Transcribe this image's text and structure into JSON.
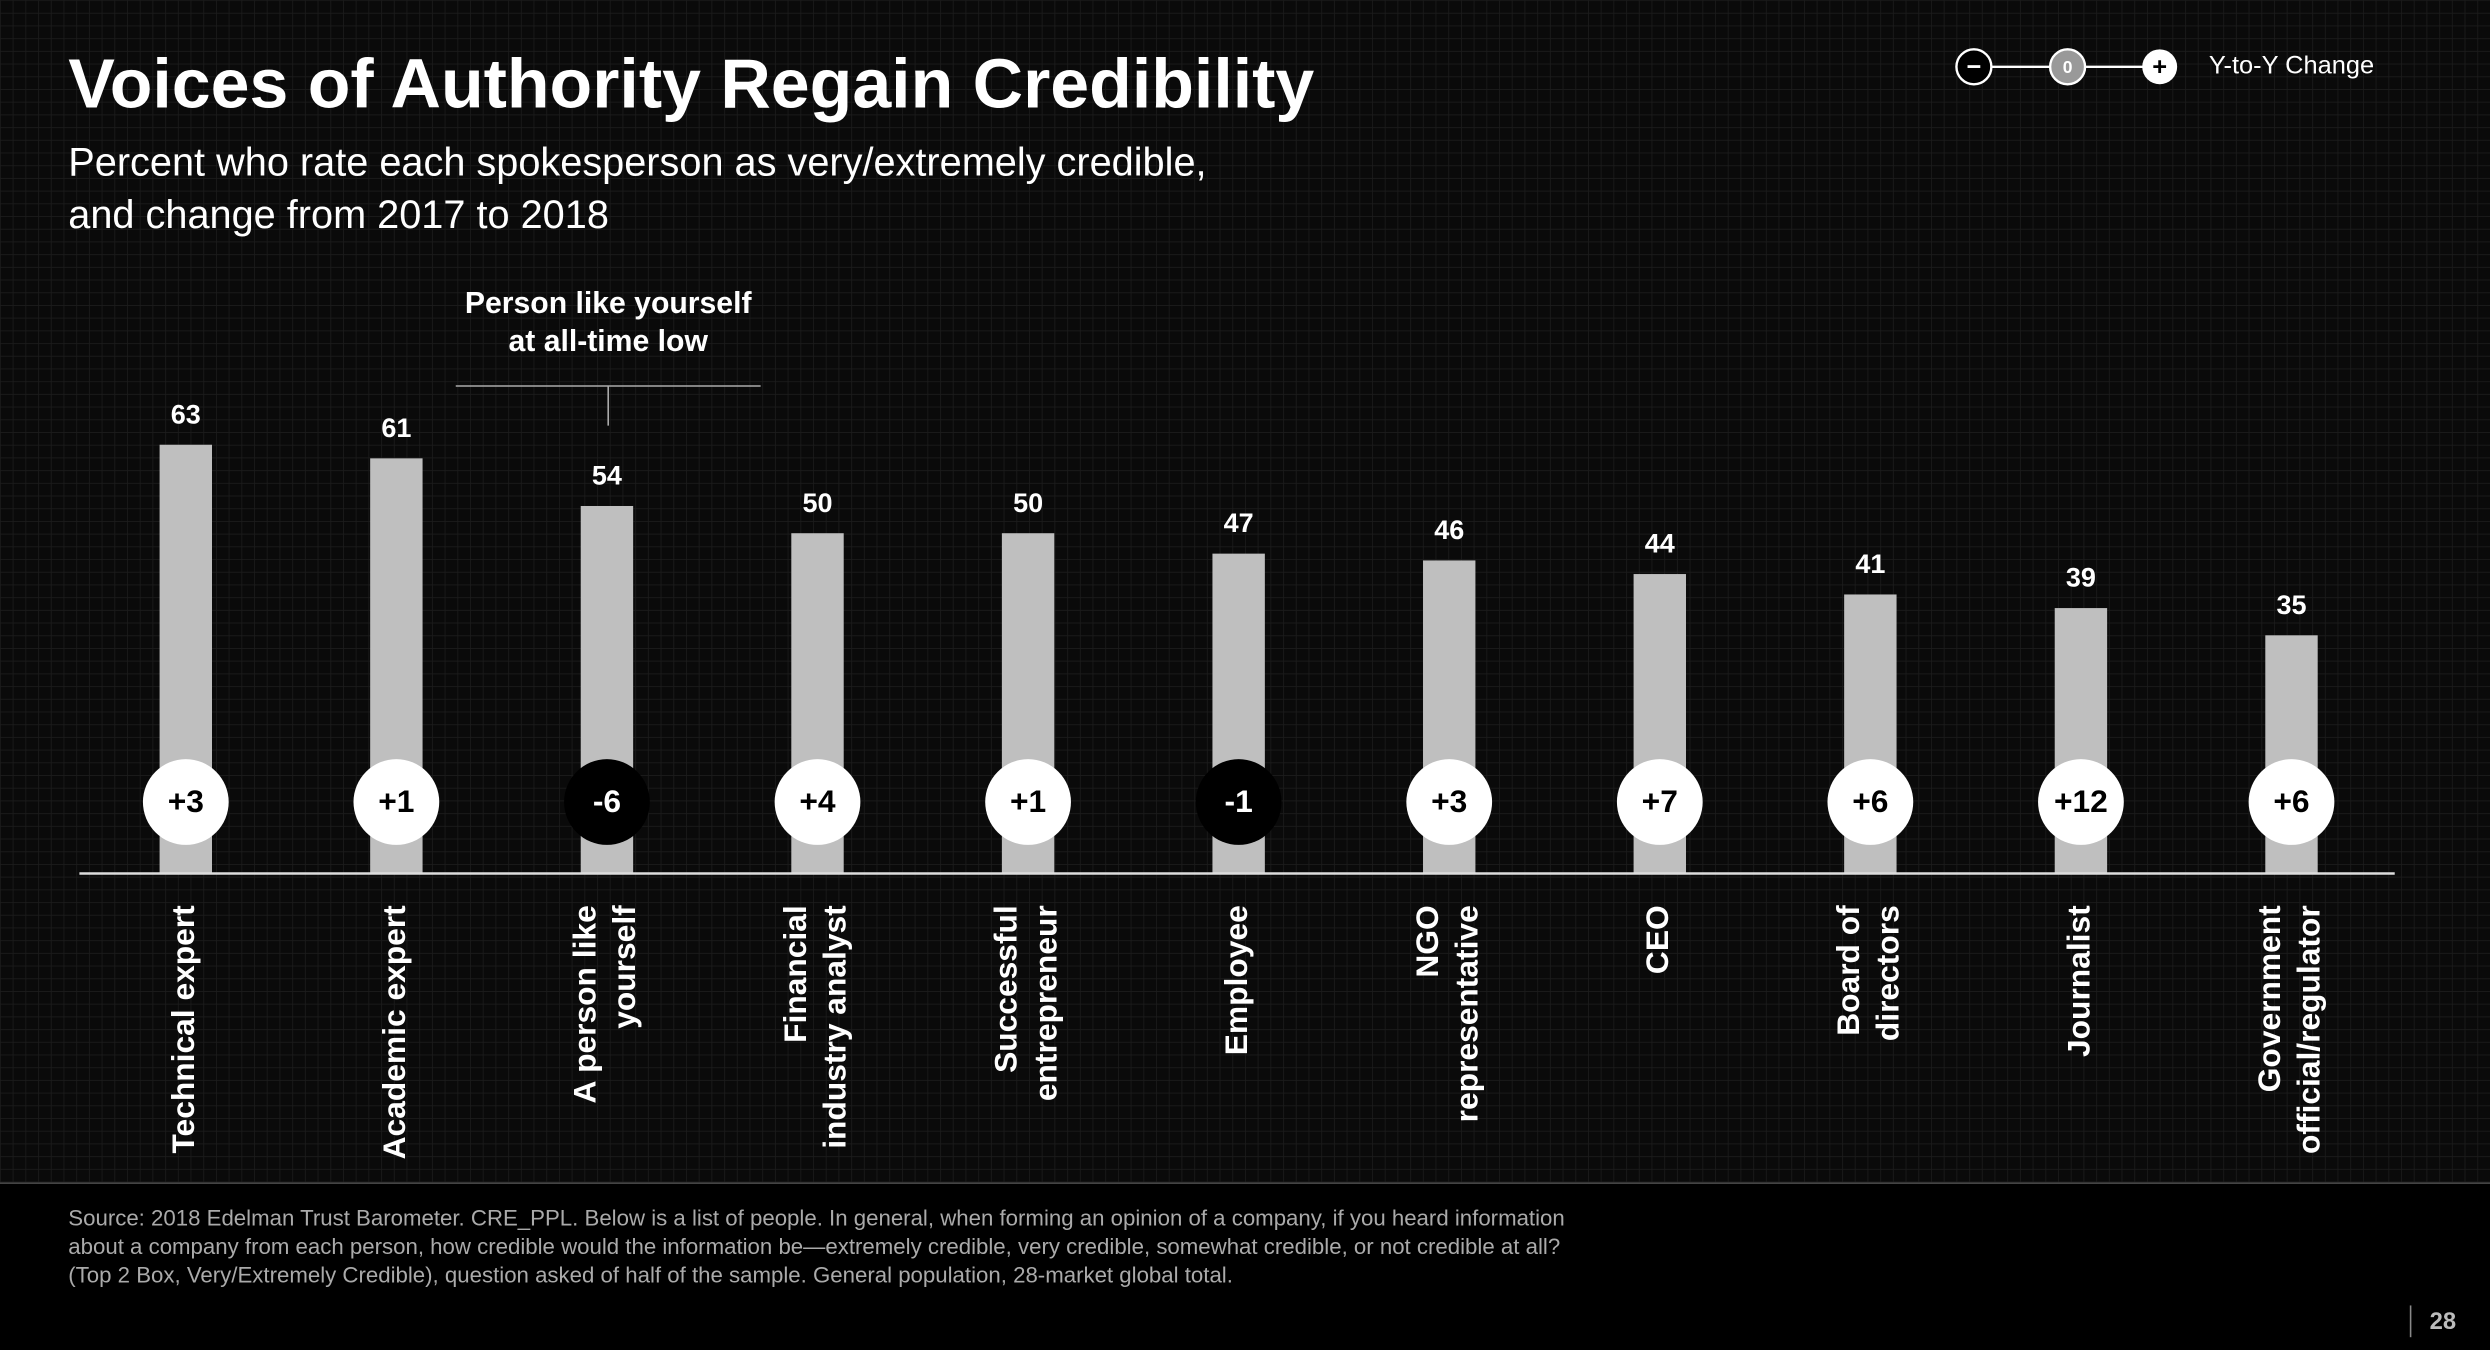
{
  "chart_data": {
    "type": "bar",
    "title": "Voices of Authority Regain Credibility",
    "subtitle": [
      "Percent who rate each spokesperson as very/extremely credible,",
      "and change from 2017 to 2018"
    ],
    "annotation": [
      "Person like yourself",
      "at all-time low"
    ],
    "categories": [
      [
        "Technical expert"
      ],
      [
        "Academic expert"
      ],
      [
        "A person like",
        "yourself"
      ],
      [
        "Financial",
        "industry analyst"
      ],
      [
        "Successful",
        "entrepreneur"
      ],
      [
        "Employee"
      ],
      [
        "NGO",
        "representative"
      ],
      [
        "CEO"
      ],
      [
        "Board of",
        "directors"
      ],
      [
        "Journalist"
      ],
      [
        "Government",
        "official/regulator"
      ]
    ],
    "values": [
      63,
      61,
      54,
      50,
      50,
      47,
      46,
      44,
      41,
      39,
      35
    ],
    "color": "#bfbfbf",
    "ylim": [
      0,
      70
    ],
    "changes": [
      3,
      1,
      -6,
      4,
      1,
      -1,
      3,
      7,
      6,
      12,
      6
    ],
    "change_labels": [
      "+3",
      "+1",
      "-6",
      "+4",
      "+1",
      "-1",
      "+3",
      "+7",
      "+6",
      "+12",
      "+6"
    ],
    "legend": {
      "symbols": [
        "−",
        "0",
        "+"
      ],
      "title": "Y-to-Y Change"
    },
    "source": [
      "Source: 2018 Edelman Trust Barometer. CRE_PPL. Below is a list of people. In general, when forming an opinion of a company, if you heard information",
      "about a company from each person, how credible would the information be—extremely credible, very credible, somewhat credible, or not credible at all?",
      "(Top 2 Box, Very/Extremely Credible), question asked of half of the sample. General population, 28-market global total."
    ],
    "page_number": "28"
  }
}
